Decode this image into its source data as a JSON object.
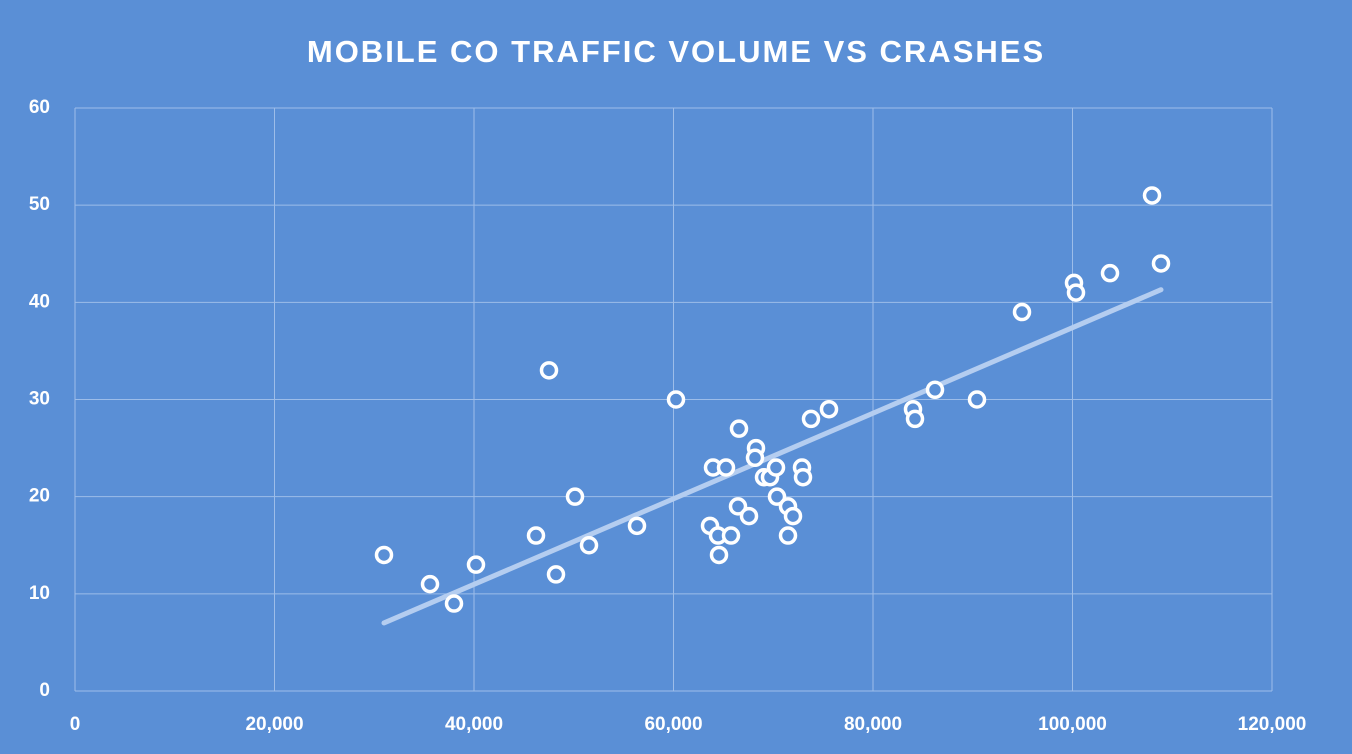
{
  "chart_data": {
    "type": "scatter",
    "title": "MOBILE CO TRAFFIC VOLUME VS CRASHES",
    "background": "#5a8fd6",
    "grid": true,
    "series": [
      {
        "color": "#ffffff",
        "x": [
          30977,
          35590,
          37995,
          40200,
          46216,
          47519,
          48221,
          50125,
          51529,
          56341,
          60251,
          63659,
          63960,
          64461,
          64561,
          65263,
          65764,
          66566,
          66466,
          67569,
          68271,
          68170,
          69073,
          69674,
          70276,
          70376,
          71479,
          71479,
          71980,
          72882,
          72982,
          73784,
          75589,
          84010,
          84211,
          86216,
          90426,
          94937,
          100150,
          100351,
          103759,
          107970,
          108872
        ],
        "values": [
          14,
          11,
          9,
          13,
          16,
          33,
          12,
          20,
          15,
          17,
          30,
          17,
          23,
          16,
          14,
          23,
          16,
          27,
          19,
          18,
          25,
          24,
          22,
          22,
          23,
          20,
          19,
          16,
          18,
          23,
          22,
          28,
          29,
          29,
          28,
          31,
          30,
          39,
          42,
          41,
          43,
          51,
          44
        ]
      }
    ],
    "trendline": {
      "color": "#b4cdf0",
      "x": [
        30977,
        108872
      ],
      "values": [
        7.0,
        41.3
      ]
    },
    "xlim": [
      0,
      120000
    ],
    "xticks": [
      0,
      {
        "value": 20000,
        "label": "20,000"
      },
      {
        "value": 40000,
        "label": "40,000"
      },
      {
        "value": 60000,
        "label": "60,000"
      },
      {
        "value": 80000,
        "label": "80,000"
      },
      {
        "value": 100000,
        "label": "100,000"
      },
      {
        "value": 120000,
        "label": "120,000"
      }
    ],
    "ylim": [
      0,
      60
    ],
    "yticks": [
      0,
      10,
      20,
      30,
      40,
      50,
      60
    ]
  }
}
